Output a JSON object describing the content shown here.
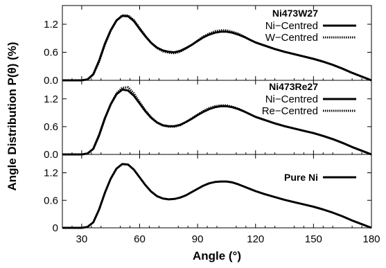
{
  "chart_data": {
    "type": "line",
    "xlabel": "Angle (°)",
    "ylabel": "Angle Distribution P(θ) (%)",
    "xlim": [
      20,
      180
    ],
    "x_ticks": [
      30,
      60,
      90,
      120,
      150,
      180
    ],
    "x": [
      20,
      30,
      33,
      36,
      39,
      42,
      45,
      48,
      51,
      54,
      57,
      60,
      63,
      66,
      69,
      72,
      75,
      78,
      81,
      84,
      87,
      90,
      93,
      96,
      99,
      102,
      105,
      108,
      111,
      114,
      117,
      120,
      125,
      130,
      135,
      140,
      145,
      150,
      155,
      160,
      165,
      170,
      175,
      180
    ],
    "panels": [
      {
        "title": "Ni473W27",
        "ylim": [
          0,
          1.6
        ],
        "y_ticks": [
          "0.0",
          "0.6",
          "1.2"
        ],
        "y_tick_values": [
          0,
          0.6,
          1.2
        ],
        "series": [
          {
            "name": "Ni−Centred",
            "style": "solid",
            "values": [
              0,
              0,
              0.02,
              0.13,
              0.42,
              0.78,
              1.07,
              1.28,
              1.38,
              1.37,
              1.27,
              1.1,
              0.94,
              0.8,
              0.7,
              0.64,
              0.61,
              0.6,
              0.63,
              0.69,
              0.76,
              0.84,
              0.92,
              0.98,
              1.02,
              1.04,
              1.04,
              1.02,
              0.98,
              0.93,
              0.87,
              0.81,
              0.74,
              0.67,
              0.61,
              0.56,
              0.51,
              0.46,
              0.4,
              0.33,
              0.25,
              0.16,
              0.08,
              0
            ]
          },
          {
            "name": "W−Centred",
            "style": "dotted",
            "values": [
              0,
              0,
              0.02,
              0.12,
              0.4,
              0.76,
              1.06,
              1.28,
              1.39,
              1.39,
              1.29,
              1.12,
              0.95,
              0.8,
              0.69,
              0.62,
              0.59,
              0.58,
              0.61,
              0.68,
              0.76,
              0.85,
              0.94,
              1.0,
              1.05,
              1.07,
              1.07,
              1.04,
              1.0,
              0.94,
              0.87,
              0.81,
              0.74,
              0.67,
              0.61,
              0.56,
              0.51,
              0.46,
              0.4,
              0.33,
              0.25,
              0.16,
              0.08,
              0
            ]
          }
        ]
      },
      {
        "title": "Ni473Re27",
        "ylim": [
          0,
          1.6
        ],
        "y_ticks": [
          "0.0",
          "0.6",
          "1.2"
        ],
        "y_tick_values": [
          0,
          0.6,
          1.2
        ],
        "series": [
          {
            "name": "Ni−Centred",
            "style": "solid",
            "values": [
              0,
              0,
              0.02,
              0.12,
              0.42,
              0.78,
              1.08,
              1.3,
              1.4,
              1.38,
              1.27,
              1.1,
              0.93,
              0.79,
              0.69,
              0.63,
              0.61,
              0.61,
              0.64,
              0.7,
              0.77,
              0.85,
              0.92,
              0.98,
              1.02,
              1.04,
              1.04,
              1.02,
              0.98,
              0.93,
              0.87,
              0.81,
              0.74,
              0.67,
              0.61,
              0.56,
              0.51,
              0.46,
              0.4,
              0.33,
              0.25,
              0.16,
              0.08,
              0
            ]
          },
          {
            "name": "Re−Centred",
            "style": "dotted",
            "values": [
              0,
              0,
              0.02,
              0.12,
              0.4,
              0.77,
              1.08,
              1.32,
              1.44,
              1.45,
              1.32,
              1.13,
              0.95,
              0.8,
              0.69,
              0.62,
              0.6,
              0.6,
              0.63,
              0.7,
              0.78,
              0.86,
              0.94,
              1.0,
              1.04,
              1.06,
              1.06,
              1.03,
              0.99,
              0.93,
              0.87,
              0.81,
              0.74,
              0.67,
              0.61,
              0.56,
              0.51,
              0.46,
              0.4,
              0.33,
              0.25,
              0.16,
              0.08,
              0
            ]
          }
        ]
      },
      {
        "title": "",
        "ylim": [
          0,
          1.6
        ],
        "y_ticks": [
          "0",
          "0.6",
          "1.2"
        ],
        "y_tick_values": [
          0,
          0.6,
          1.2
        ],
        "series": [
          {
            "name": "Pure Ni",
            "style": "solid",
            "values": [
              0,
              0,
              0.02,
              0.12,
              0.4,
              0.76,
              1.07,
              1.29,
              1.39,
              1.38,
              1.27,
              1.1,
              0.93,
              0.79,
              0.69,
              0.64,
              0.62,
              0.63,
              0.66,
              0.71,
              0.78,
              0.85,
              0.92,
              0.97,
              1.0,
              1.01,
              1.01,
              0.99,
              0.95,
              0.9,
              0.85,
              0.8,
              0.73,
              0.67,
              0.61,
              0.56,
              0.51,
              0.46,
              0.4,
              0.33,
              0.25,
              0.16,
              0.08,
              0
            ]
          }
        ]
      }
    ]
  }
}
